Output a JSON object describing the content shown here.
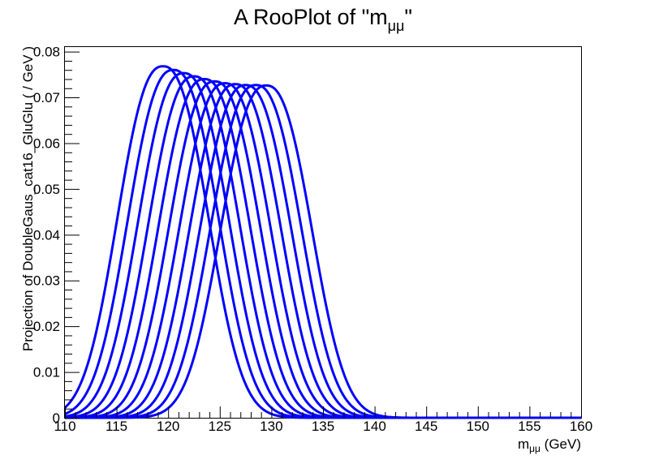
{
  "chart_data": {
    "type": "line",
    "title": "A RooPlot of \"m",
    "title_sub": "μμ",
    "title_end": "\"",
    "xlabel_main": "m",
    "xlabel_sub": "μμ",
    "xlabel_unit": " (GeV)",
    "ylabel": "Projection of DoubleGaus_cat16_GluGlu ( / GeV )",
    "xlim": [
      110,
      160
    ],
    "ylim": [
      0,
      0.081
    ],
    "x_ticks": [
      "110",
      "115",
      "120",
      "125",
      "130",
      "135",
      "140",
      "145",
      "150",
      "155",
      "160"
    ],
    "y_ticks": [
      "0",
      "0.01",
      "0.02",
      "0.03",
      "0.04",
      "0.05",
      "0.06",
      "0.07",
      "0.08"
    ],
    "line_color": "#0000ff",
    "series": [
      {
        "mean": 119.5,
        "peak": 0.0768
      },
      {
        "mean": 120.5,
        "peak": 0.076
      },
      {
        "mean": 121.5,
        "peak": 0.0753
      },
      {
        "mean": 122.5,
        "peak": 0.0746
      },
      {
        "mean": 123.5,
        "peak": 0.074
      },
      {
        "mean": 124.5,
        "peak": 0.0735
      },
      {
        "mean": 125.5,
        "peak": 0.0731
      },
      {
        "mean": 126.5,
        "peak": 0.0729
      },
      {
        "mean": 127.5,
        "peak": 0.0727
      },
      {
        "mean": 128.5,
        "peak": 0.0727
      },
      {
        "mean": 129.5,
        "peak": 0.0726
      }
    ]
  }
}
